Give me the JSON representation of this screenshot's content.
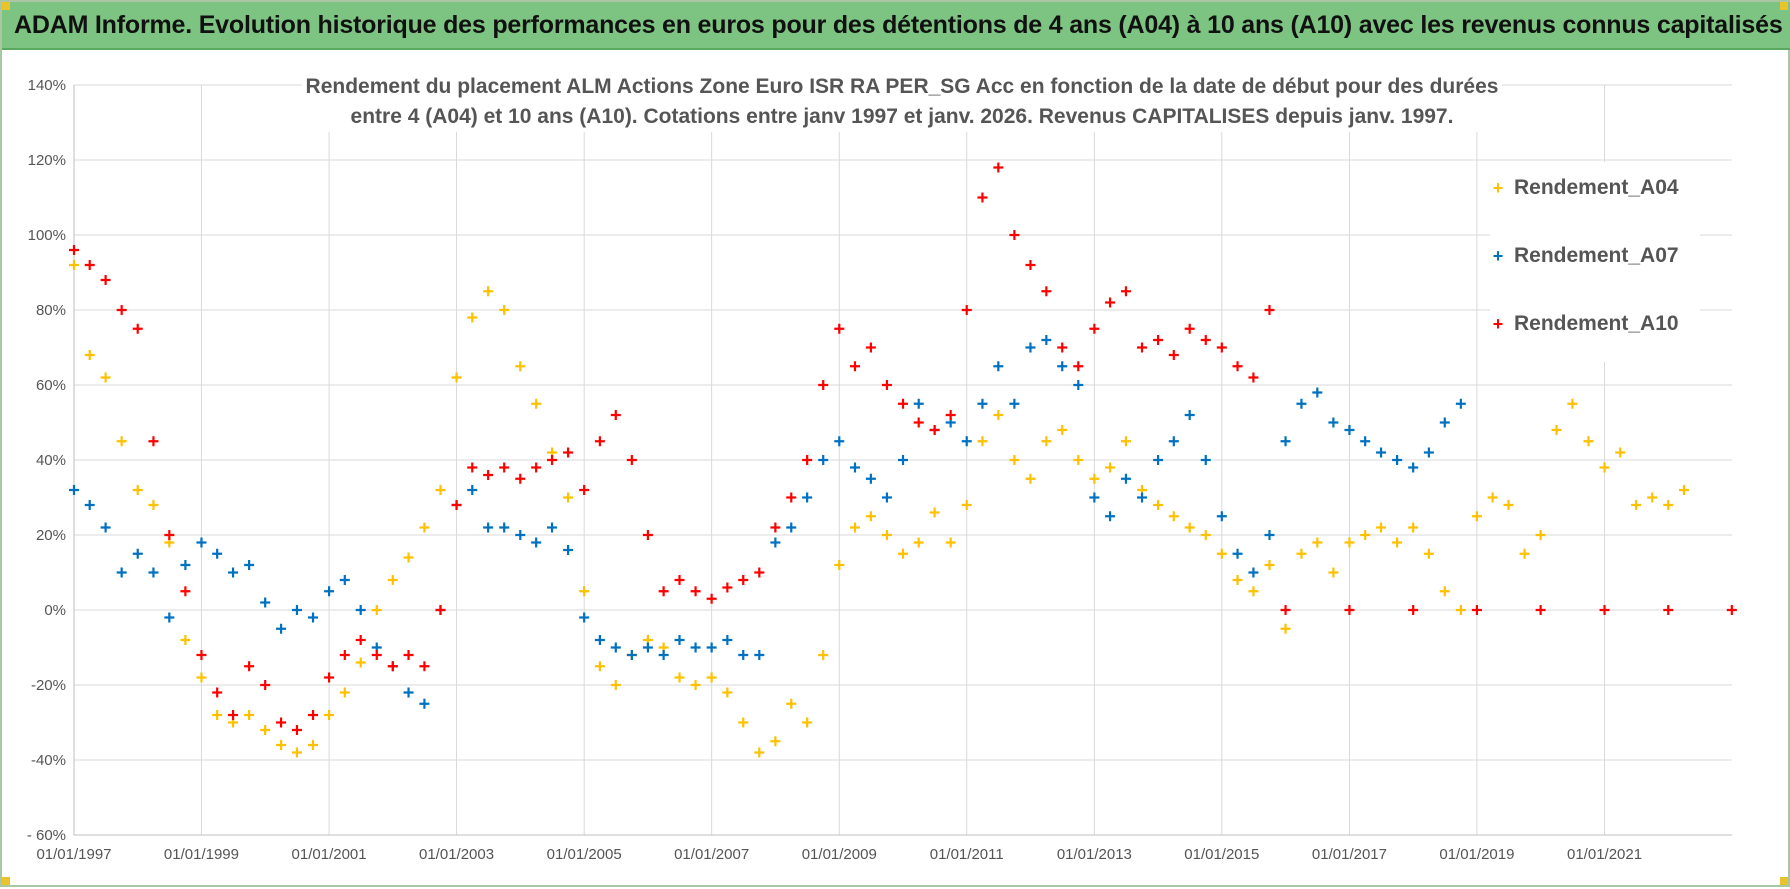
{
  "header": {
    "title": "ADAM Informe. Evolution historique des performances en euros pour des détentions de 4 ans (A04) à 10 ans (A10) avec les revenus connus capitalisés"
  },
  "colors": {
    "header_bg": "#7dc382",
    "A04": "#ffc000",
    "A07": "#0070c0",
    "A10": "#ff0000",
    "grid": "#d9d9d9"
  },
  "chart_data": {
    "type": "scatter",
    "title_line1": "Rendement du placement ALM Actions Zone Euro ISR RA PER_SG Acc en fonction de la date de début pour des durées",
    "title_line2": "entre 4 (A04) et 10 ans (A10). Cotations entre janv 1997 et janv. 2026. Revenus CAPITALISES depuis janv. 1997.",
    "x_axis": {
      "type": "date",
      "range": [
        "1997-01-01",
        "2023-01-01"
      ],
      "ticks": [
        "01/01/1997",
        "01/01/1999",
        "01/01/2001",
        "01/01/2003",
        "01/01/2005",
        "01/01/2007",
        "01/01/2009",
        "01/01/2011",
        "01/01/2013",
        "01/01/2015",
        "01/01/2017",
        "01/01/2019",
        "01/01/2021"
      ]
    },
    "y_axis": {
      "range": [
        -60,
        140
      ],
      "unit": "%",
      "ticks": [
        "- 60%",
        "-40%",
        "-20%",
        "0%",
        "20%",
        "40%",
        "60%",
        "80%",
        "100%",
        "120%",
        "140%"
      ]
    },
    "grid": true,
    "legend_position": "right",
    "series": [
      {
        "name": "Rendement_A04",
        "color": "#ffc000",
        "points": [
          [
            "1997-01-01",
            92
          ],
          [
            "1997-04-01",
            68
          ],
          [
            "1997-07-01",
            62
          ],
          [
            "1997-10-01",
            45
          ],
          [
            "1998-01-01",
            32
          ],
          [
            "1998-04-01",
            28
          ],
          [
            "1998-07-01",
            18
          ],
          [
            "1998-10-01",
            -8
          ],
          [
            "1999-01-01",
            -18
          ],
          [
            "1999-04-01",
            -28
          ],
          [
            "1999-07-01",
            -30
          ],
          [
            "1999-10-01",
            -28
          ],
          [
            "2000-01-01",
            -32
          ],
          [
            "2000-04-01",
            -36
          ],
          [
            "2000-07-01",
            -38
          ],
          [
            "2000-10-01",
            -36
          ],
          [
            "2001-01-01",
            -28
          ],
          [
            "2001-04-01",
            -22
          ],
          [
            "2001-07-01",
            -14
          ],
          [
            "2001-10-01",
            0
          ],
          [
            "2002-01-01",
            8
          ],
          [
            "2002-04-01",
            14
          ],
          [
            "2002-07-01",
            22
          ],
          [
            "2002-10-01",
            32
          ],
          [
            "2003-01-01",
            62
          ],
          [
            "2003-04-01",
            78
          ],
          [
            "2003-07-01",
            85
          ],
          [
            "2003-10-01",
            80
          ],
          [
            "2004-01-01",
            65
          ],
          [
            "2004-04-01",
            55
          ],
          [
            "2004-07-01",
            42
          ],
          [
            "2004-10-01",
            30
          ],
          [
            "2005-01-01",
            5
          ],
          [
            "2005-04-01",
            -15
          ],
          [
            "2005-07-01",
            -20
          ],
          [
            "2005-10-01",
            -12
          ],
          [
            "2006-01-01",
            -8
          ],
          [
            "2006-04-01",
            -10
          ],
          [
            "2006-07-01",
            -18
          ],
          [
            "2006-10-01",
            -20
          ],
          [
            "2007-01-01",
            -18
          ],
          [
            "2007-04-01",
            -22
          ],
          [
            "2007-07-01",
            -30
          ],
          [
            "2007-10-01",
            -38
          ],
          [
            "2008-01-01",
            -35
          ],
          [
            "2008-04-01",
            -25
          ],
          [
            "2008-07-01",
            -30
          ],
          [
            "2008-10-01",
            -12
          ],
          [
            "2009-01-01",
            12
          ],
          [
            "2009-04-01",
            22
          ],
          [
            "2009-07-01",
            25
          ],
          [
            "2009-10-01",
            20
          ],
          [
            "2010-01-01",
            15
          ],
          [
            "2010-04-01",
            18
          ],
          [
            "2010-07-01",
            26
          ],
          [
            "2010-10-01",
            18
          ],
          [
            "2011-01-01",
            28
          ],
          [
            "2011-04-01",
            45
          ],
          [
            "2011-07-01",
            52
          ],
          [
            "2011-10-01",
            40
          ],
          [
            "2012-01-01",
            35
          ],
          [
            "2012-04-01",
            45
          ],
          [
            "2012-07-01",
            48
          ],
          [
            "2012-10-01",
            40
          ],
          [
            "2013-01-01",
            35
          ],
          [
            "2013-04-01",
            38
          ],
          [
            "2013-07-01",
            45
          ],
          [
            "2013-10-01",
            32
          ],
          [
            "2014-01-01",
            28
          ],
          [
            "2014-04-01",
            25
          ],
          [
            "2014-07-01",
            22
          ],
          [
            "2014-10-01",
            20
          ],
          [
            "2015-01-01",
            15
          ],
          [
            "2015-04-01",
            8
          ],
          [
            "2015-07-01",
            5
          ],
          [
            "2015-10-01",
            12
          ],
          [
            "2016-01-01",
            -5
          ],
          [
            "2016-04-01",
            15
          ],
          [
            "2016-07-01",
            18
          ],
          [
            "2016-10-01",
            10
          ],
          [
            "2017-01-01",
            18
          ],
          [
            "2017-04-01",
            20
          ],
          [
            "2017-07-01",
            22
          ],
          [
            "2017-10-01",
            18
          ],
          [
            "2018-01-01",
            22
          ],
          [
            "2018-04-01",
            15
          ],
          [
            "2018-07-01",
            5
          ],
          [
            "2018-10-01",
            0
          ],
          [
            "2019-01-01",
            25
          ],
          [
            "2019-04-01",
            30
          ],
          [
            "2019-07-01",
            28
          ],
          [
            "2019-10-01",
            15
          ],
          [
            "2020-01-01",
            20
          ],
          [
            "2020-04-01",
            48
          ],
          [
            "2020-07-01",
            55
          ],
          [
            "2020-10-01",
            45
          ],
          [
            "2021-01-01",
            38
          ],
          [
            "2021-04-01",
            42
          ],
          [
            "2021-07-01",
            28
          ],
          [
            "2021-10-01",
            30
          ],
          [
            "2022-01-01",
            28
          ],
          [
            "2022-04-01",
            32
          ]
        ]
      },
      {
        "name": "Rendement_A07",
        "color": "#0070c0",
        "points": [
          [
            "1997-01-01",
            32
          ],
          [
            "1997-04-01",
            28
          ],
          [
            "1997-07-01",
            22
          ],
          [
            "1997-10-01",
            10
          ],
          [
            "1998-01-01",
            15
          ],
          [
            "1998-04-01",
            10
          ],
          [
            "1998-07-01",
            -2
          ],
          [
            "1998-10-01",
            12
          ],
          [
            "1999-01-01",
            18
          ],
          [
            "1999-04-01",
            15
          ],
          [
            "1999-07-01",
            10
          ],
          [
            "1999-10-01",
            12
          ],
          [
            "2000-01-01",
            2
          ],
          [
            "2000-04-01",
            -5
          ],
          [
            "2000-07-01",
            0
          ],
          [
            "2000-10-01",
            -2
          ],
          [
            "2001-01-01",
            5
          ],
          [
            "2001-04-01",
            8
          ],
          [
            "2001-07-01",
            0
          ],
          [
            "2001-10-01",
            -10
          ],
          [
            "2002-01-01",
            -15
          ],
          [
            "2002-04-01",
            -22
          ],
          [
            "2002-07-01",
            -25
          ],
          [
            "2002-10-01",
            0
          ],
          [
            "2003-01-01",
            28
          ],
          [
            "2003-04-01",
            32
          ],
          [
            "2003-07-01",
            22
          ],
          [
            "2003-10-01",
            22
          ],
          [
            "2004-01-01",
            20
          ],
          [
            "2004-04-01",
            18
          ],
          [
            "2004-07-01",
            22
          ],
          [
            "2004-10-01",
            16
          ],
          [
            "2005-01-01",
            -2
          ],
          [
            "2005-04-01",
            -8
          ],
          [
            "2005-07-01",
            -10
          ],
          [
            "2005-10-01",
            -12
          ],
          [
            "2006-01-01",
            -10
          ],
          [
            "2006-04-01",
            -12
          ],
          [
            "2006-07-01",
            -8
          ],
          [
            "2006-10-01",
            -10
          ],
          [
            "2007-01-01",
            -10
          ],
          [
            "2007-04-01",
            -8
          ],
          [
            "2007-07-01",
            -12
          ],
          [
            "2007-10-01",
            -12
          ],
          [
            "2008-01-01",
            18
          ],
          [
            "2008-04-01",
            22
          ],
          [
            "2008-07-01",
            30
          ],
          [
            "2008-10-01",
            40
          ],
          [
            "2009-01-01",
            45
          ],
          [
            "2009-04-01",
            38
          ],
          [
            "2009-07-01",
            35
          ],
          [
            "2009-10-01",
            30
          ],
          [
            "2010-01-01",
            40
          ],
          [
            "2010-04-01",
            55
          ],
          [
            "2010-07-01",
            48
          ],
          [
            "2010-10-01",
            50
          ],
          [
            "2011-01-01",
            45
          ],
          [
            "2011-04-01",
            55
          ],
          [
            "2011-07-01",
            65
          ],
          [
            "2011-10-01",
            55
          ],
          [
            "2012-01-01",
            70
          ],
          [
            "2012-04-01",
            72
          ],
          [
            "2012-07-01",
            65
          ],
          [
            "2012-10-01",
            60
          ],
          [
            "2013-01-01",
            30
          ],
          [
            "2013-04-01",
            25
          ],
          [
            "2013-07-01",
            35
          ],
          [
            "2013-10-01",
            30
          ],
          [
            "2014-01-01",
            40
          ],
          [
            "2014-04-01",
            45
          ],
          [
            "2014-07-01",
            52
          ],
          [
            "2014-10-01",
            40
          ],
          [
            "2015-01-01",
            25
          ],
          [
            "2015-04-01",
            15
          ],
          [
            "2015-07-01",
            10
          ],
          [
            "2015-10-01",
            20
          ],
          [
            "2016-01-01",
            45
          ],
          [
            "2016-04-01",
            55
          ],
          [
            "2016-07-01",
            58
          ],
          [
            "2016-10-01",
            50
          ],
          [
            "2017-01-01",
            48
          ],
          [
            "2017-04-01",
            45
          ],
          [
            "2017-07-01",
            42
          ],
          [
            "2017-10-01",
            40
          ],
          [
            "2018-01-01",
            38
          ],
          [
            "2018-04-01",
            42
          ],
          [
            "2018-07-01",
            50
          ],
          [
            "2018-10-01",
            55
          ]
        ]
      },
      {
        "name": "Rendement_A10",
        "color": "#ff0000",
        "points": [
          [
            "1997-01-01",
            96
          ],
          [
            "1997-04-01",
            92
          ],
          [
            "1997-07-01",
            88
          ],
          [
            "1997-10-01",
            80
          ],
          [
            "1998-01-01",
            75
          ],
          [
            "1998-04-01",
            45
          ],
          [
            "1998-07-01",
            20
          ],
          [
            "1998-10-01",
            5
          ],
          [
            "1999-01-01",
            -12
          ],
          [
            "1999-04-01",
            -22
          ],
          [
            "1999-07-01",
            -28
          ],
          [
            "1999-10-01",
            -15
          ],
          [
            "2000-01-01",
            -20
          ],
          [
            "2000-04-01",
            -30
          ],
          [
            "2000-07-01",
            -32
          ],
          [
            "2000-10-01",
            -28
          ],
          [
            "2001-01-01",
            -18
          ],
          [
            "2001-04-01",
            -12
          ],
          [
            "2001-07-01",
            -8
          ],
          [
            "2001-10-01",
            -12
          ],
          [
            "2002-01-01",
            -15
          ],
          [
            "2002-04-01",
            -12
          ],
          [
            "2002-07-01",
            -15
          ],
          [
            "2002-10-01",
            0
          ],
          [
            "2003-01-01",
            28
          ],
          [
            "2003-04-01",
            38
          ],
          [
            "2003-07-01",
            36
          ],
          [
            "2003-10-01",
            38
          ],
          [
            "2004-01-01",
            35
          ],
          [
            "2004-04-01",
            38
          ],
          [
            "2004-07-01",
            40
          ],
          [
            "2004-10-01",
            42
          ],
          [
            "2005-01-01",
            32
          ],
          [
            "2005-04-01",
            45
          ],
          [
            "2005-07-01",
            52
          ],
          [
            "2005-10-01",
            40
          ],
          [
            "2006-01-01",
            20
          ],
          [
            "2006-04-01",
            5
          ],
          [
            "2006-07-01",
            8
          ],
          [
            "2006-10-01",
            5
          ],
          [
            "2007-01-01",
            3
          ],
          [
            "2007-04-01",
            6
          ],
          [
            "2007-07-01",
            8
          ],
          [
            "2007-10-01",
            10
          ],
          [
            "2008-01-01",
            22
          ],
          [
            "2008-04-01",
            30
          ],
          [
            "2008-07-01",
            40
          ],
          [
            "2008-10-01",
            60
          ],
          [
            "2009-01-01",
            75
          ],
          [
            "2009-04-01",
            65
          ],
          [
            "2009-07-01",
            70
          ],
          [
            "2009-10-01",
            60
          ],
          [
            "2010-01-01",
            55
          ],
          [
            "2010-04-01",
            50
          ],
          [
            "2010-07-01",
            48
          ],
          [
            "2010-10-01",
            52
          ],
          [
            "2011-01-01",
            80
          ],
          [
            "2011-04-01",
            110
          ],
          [
            "2011-07-01",
            118
          ],
          [
            "2011-10-01",
            100
          ],
          [
            "2012-01-01",
            92
          ],
          [
            "2012-04-01",
            85
          ],
          [
            "2012-07-01",
            70
          ],
          [
            "2012-10-01",
            65
          ],
          [
            "2013-01-01",
            75
          ],
          [
            "2013-04-01",
            82
          ],
          [
            "2013-07-01",
            85
          ],
          [
            "2013-10-01",
            70
          ],
          [
            "2014-01-01",
            72
          ],
          [
            "2014-04-01",
            68
          ],
          [
            "2014-07-01",
            75
          ],
          [
            "2014-10-01",
            72
          ],
          [
            "2015-01-01",
            70
          ],
          [
            "2015-04-01",
            65
          ],
          [
            "2015-07-01",
            62
          ],
          [
            "2015-10-01",
            80
          ],
          [
            "2016-01-01",
            0
          ],
          [
            "2017-01-01",
            0
          ],
          [
            "2018-01-01",
            0
          ],
          [
            "2019-01-01",
            0
          ],
          [
            "2020-01-01",
            0
          ],
          [
            "2021-01-01",
            0
          ],
          [
            "2022-01-01",
            0
          ],
          [
            "2022-12-31",
            0
          ]
        ]
      }
    ]
  }
}
